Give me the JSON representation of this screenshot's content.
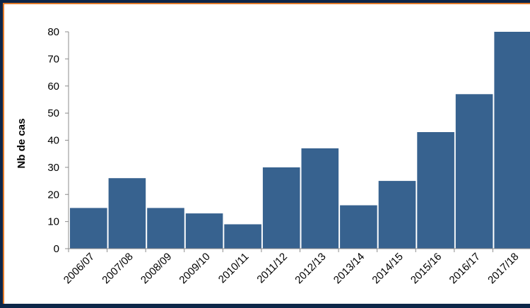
{
  "chart_data": {
    "type": "bar",
    "title": "",
    "xlabel": "",
    "ylabel": "Nb de cas",
    "ylim": [
      0,
      80
    ],
    "yticks": [
      0,
      10,
      20,
      30,
      40,
      50,
      60,
      70,
      80
    ],
    "grid": false,
    "legend": "none",
    "bar_color": "#37628f",
    "categories": [
      "2006/07",
      "2007/08",
      "2008/09",
      "2009/10",
      "2010/11",
      "2011/12",
      "2012/13",
      "2013/14",
      "2014/15",
      "2015/16",
      "2016/17",
      "2017/18"
    ],
    "values": [
      15,
      26,
      15,
      13,
      9,
      30,
      37,
      16,
      25,
      43,
      57,
      80
    ]
  },
  "colors": {
    "background": "#0d2648",
    "panel": "#ffffff",
    "accent_border": "#e07a2a",
    "bars": "#37628f"
  }
}
